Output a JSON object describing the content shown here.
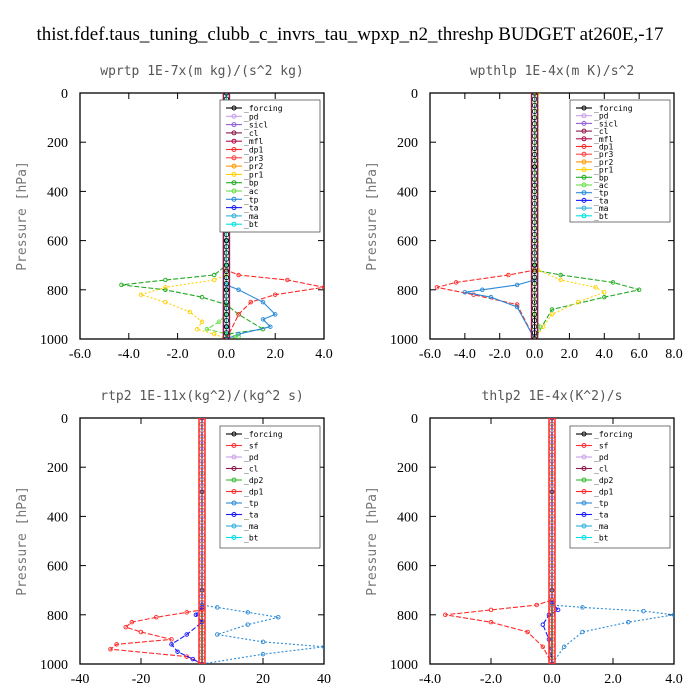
{
  "title": "thist.fdef.taus_tuning_clubb_c_invrs_tau_wpxp_n2_threshp  BUDGET at260E,-17",
  "colors": {
    "_forcing": "#000000",
    "_pd": "#c8a0e8",
    "_sicl": "#9060d0",
    "_cl": "#8b1a4a",
    "_mfl": "#b0104a",
    "_dp1": "#ff2a2a",
    "_pr3": "#ff4444",
    "_pr2": "#ff9900",
    "_pr1": "#ffd000",
    "_bp": "#22aa22",
    "_ac": "#66dd44",
    "_tp": "#2a8ad8",
    "_ta": "#1a1aff",
    "_ma": "#30b0d8",
    "_bt": "#00e0e0",
    "_sf": "#ff3333",
    "_dp2": "#33bb33"
  },
  "chart_data": [
    {
      "type": "line",
      "title": "wprtp  1E-7x(m kg)/(s^2 kg)",
      "ylabel": "Pressure [hPa]",
      "xlim": [
        -6,
        4
      ],
      "ylim": [
        1000,
        0
      ],
      "xticks": [
        "-6.0",
        "-4.0",
        "-2.0",
        "0.0",
        "2.0",
        "4.0"
      ],
      "yticks": [
        "0",
        "200",
        "400",
        "600",
        "800",
        "1000"
      ],
      "legend_position": "top-right",
      "legend": [
        "_forcing",
        "_pd",
        "_sicl",
        "_cl",
        "_mfl",
        "_dp1",
        "_pr3",
        "_pr2",
        "_pr1",
        "_bp",
        "_ac",
        "_tp",
        "_ta",
        "_ma",
        "_bt"
      ],
      "series": [
        {
          "name": "_forcing",
          "x": [
            0,
            0,
            0,
            0,
            0,
            0,
            0,
            0,
            0,
            0,
            0,
            0
          ],
          "y": [
            0,
            100,
            200,
            300,
            400,
            500,
            600,
            700,
            800,
            900,
            950,
            1000
          ]
        },
        {
          "name": "_bp",
          "x": [
            0,
            0,
            -0.5,
            -2.5,
            -4.3,
            -2.5,
            -1.0,
            0,
            0.5,
            1.5,
            0,
            0
          ],
          "y": [
            0,
            700,
            740,
            760,
            780,
            800,
            830,
            860,
            900,
            960,
            980,
            1000
          ]
        },
        {
          "name": "_pr1",
          "x": [
            0,
            0,
            -0.5,
            -2.5,
            -3.5,
            -2.5,
            -1.5,
            -1.0,
            -1.2,
            -0.5,
            0
          ],
          "y": [
            0,
            740,
            760,
            790,
            820,
            850,
            890,
            930,
            960,
            980,
            1000
          ]
        },
        {
          "name": "_dp1",
          "x": [
            0,
            0,
            0.5,
            2.5,
            4.0,
            2.0,
            1.0,
            0.5,
            0
          ],
          "y": [
            0,
            720,
            740,
            760,
            790,
            820,
            850,
            900,
            1000
          ]
        },
        {
          "name": "_tp",
          "x": [
            0,
            0,
            0.5,
            1.5,
            2.0,
            1.5,
            1.8,
            0.5,
            0
          ],
          "y": [
            0,
            780,
            800,
            850,
            900,
            920,
            950,
            980,
            1000
          ]
        },
        {
          "name": "_ac",
          "x": [
            0,
            0,
            -0.3,
            -0.8,
            0.5,
            0
          ],
          "y": [
            0,
            900,
            930,
            960,
            990,
            1000
          ]
        },
        {
          "name": "_bt",
          "x": [
            0,
            0,
            0
          ],
          "y": [
            0,
            500,
            1000
          ]
        }
      ]
    },
    {
      "type": "line",
      "title": "wpthlp  1E-4x(m K)/s^2",
      "ylabel": "Pressure [hPa]",
      "xlim": [
        -6,
        8
      ],
      "ylim": [
        1000,
        0
      ],
      "xticks": [
        "-6.0",
        "-4.0",
        "-2.0",
        "0.0",
        "2.0",
        "4.0",
        "6.0",
        "8.0"
      ],
      "yticks": [
        "0",
        "200",
        "400",
        "600",
        "800",
        "1000"
      ],
      "legend_position": "top-right",
      "legend": [
        "_forcing",
        "_pd",
        "_sicl",
        "_cl",
        "_mfl",
        "_dp1",
        "_pr3",
        "_pr2",
        "_pr1",
        "_bp",
        "_ac",
        "_tp",
        "_ta",
        "_ma",
        "_bt"
      ],
      "series": [
        {
          "name": "_forcing",
          "x": [
            0,
            0,
            0,
            0
          ],
          "y": [
            0,
            300,
            700,
            1000
          ]
        },
        {
          "name": "_bp",
          "x": [
            0,
            0,
            1.5,
            4.5,
            6.0,
            4.0,
            1.0,
            0
          ],
          "y": [
            0,
            720,
            740,
            770,
            800,
            830,
            880,
            1000
          ]
        },
        {
          "name": "_pr1",
          "x": [
            0.2,
            0.2,
            1.5,
            3.5,
            4.0,
            2.5,
            1.0,
            0.5,
            0
          ],
          "y": [
            0,
            720,
            760,
            790,
            810,
            850,
            900,
            950,
            1000
          ]
        },
        {
          "name": "_dp1",
          "x": [
            0,
            0,
            -1.5,
            -4.5,
            -5.6,
            -3.5,
            -1.0,
            0
          ],
          "y": [
            0,
            720,
            740,
            770,
            790,
            820,
            860,
            1000
          ]
        },
        {
          "name": "_tp",
          "x": [
            0,
            0,
            -1.0,
            -3.0,
            -4.0,
            -2.5,
            -1.0,
            0
          ],
          "y": [
            0,
            760,
            780,
            800,
            810,
            830,
            870,
            1000
          ]
        },
        {
          "name": "_ac",
          "x": [
            0,
            0,
            0.3,
            0
          ],
          "y": [
            0,
            900,
            950,
            1000
          ]
        }
      ]
    },
    {
      "type": "line",
      "title": "rtp2  1E-11x(kg^2)/(kg^2 s)",
      "ylabel": "Pressure [hPa]",
      "xlim": [
        -40,
        40
      ],
      "ylim": [
        1000,
        0
      ],
      "xticks": [
        "-40",
        "-20",
        "0",
        "20",
        "40"
      ],
      "yticks": [
        "0",
        "200",
        "400",
        "600",
        "800",
        "1000"
      ],
      "legend_position": "top-right",
      "legend": [
        "_forcing",
        "_sf",
        "_pd",
        "_cl",
        "_dp2",
        "_dp1",
        "_tp",
        "_ta",
        "_ma",
        "_bt"
      ],
      "series": [
        {
          "name": "_forcing",
          "x": [
            0,
            0,
            0,
            0
          ],
          "y": [
            0,
            300,
            700,
            1000
          ]
        },
        {
          "name": "_dp1",
          "x": [
            0,
            0,
            -5,
            -15,
            -23,
            -25,
            -20,
            -10,
            -28,
            -30,
            -5,
            0
          ],
          "y": [
            0,
            780,
            790,
            810,
            830,
            850,
            870,
            900,
            920,
            940,
            970,
            1000
          ]
        },
        {
          "name": "_tp",
          "x": [
            0,
            0,
            5,
            15,
            25,
            15,
            5,
            20,
            40,
            20,
            0
          ],
          "y": [
            0,
            760,
            770,
            790,
            810,
            840,
            880,
            910,
            930,
            960,
            1000
          ]
        },
        {
          "name": "_ta",
          "x": [
            0,
            0,
            -2,
            0,
            -5,
            -10,
            -8,
            -3,
            0
          ],
          "y": [
            0,
            770,
            800,
            830,
            880,
            920,
            950,
            980,
            1000
          ]
        }
      ]
    },
    {
      "type": "line",
      "title": "thlp2  1E-4x(K^2)/s",
      "ylabel": "Pressure [hPa]",
      "xlim": [
        -4,
        4
      ],
      "ylim": [
        1000,
        0
      ],
      "xticks": [
        "-4.0",
        "-2.0",
        "0.0",
        "2.0",
        "4.0"
      ],
      "yticks": [
        "0",
        "200",
        "400",
        "600",
        "800",
        "1000"
      ],
      "legend_position": "top-right",
      "legend": [
        "_forcing",
        "_sf",
        "_pd",
        "_cl",
        "_dp2",
        "_dp1",
        "_tp",
        "_ta",
        "_ma",
        "_bt"
      ],
      "series": [
        {
          "name": "_forcing",
          "x": [
            0,
            0,
            0,
            0
          ],
          "y": [
            0,
            300,
            700,
            1000
          ]
        },
        {
          "name": "_dp1",
          "x": [
            0,
            0,
            -0.5,
            -2.0,
            -3.5,
            -2.0,
            -0.8,
            -0.3,
            0
          ],
          "y": [
            0,
            740,
            760,
            780,
            800,
            830,
            870,
            930,
            1000
          ]
        },
        {
          "name": "_tp",
          "x": [
            0,
            0,
            1.0,
            3.0,
            4.0,
            2.5,
            1.0,
            0.4,
            0
          ],
          "y": [
            0,
            760,
            770,
            785,
            800,
            830,
            870,
            930,
            1000
          ]
        },
        {
          "name": "_ta",
          "x": [
            0,
            0,
            0.2,
            -0.1,
            -0.3,
            -0.1,
            0
          ],
          "y": [
            0,
            750,
            780,
            800,
            840,
            900,
            1000
          ]
        }
      ]
    }
  ]
}
